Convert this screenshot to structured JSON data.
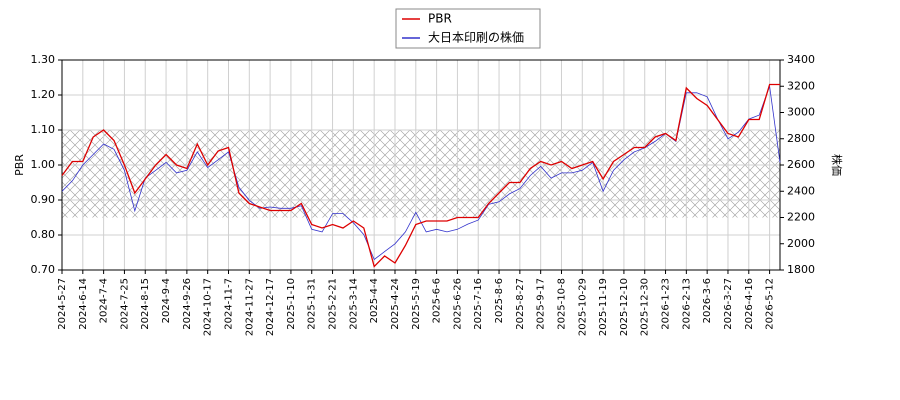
{
  "chart_data": {
    "type": "line",
    "categories": [
      "2024-5-27",
      null,
      "2024-6-14",
      null,
      "2024-7-4",
      null,
      "2024-7-25",
      null,
      "2024-8-15",
      null,
      "2024-9-4",
      null,
      "2024-9-26",
      null,
      "2024-10-17",
      null,
      "2024-11-7",
      null,
      "2024-11-27",
      null,
      "2024-12-17",
      null,
      "2025-1-10",
      null,
      "2025-1-31",
      null,
      "2025-2-21",
      null,
      "2025-3-14",
      null,
      "2025-4-4",
      null,
      "2025-4-24",
      null,
      "2025-5-19",
      null,
      "2025-6-6",
      null,
      "2025-6-26",
      null,
      "2025-7-16",
      null,
      "2025-8-6",
      null,
      "2025-8-27",
      null,
      "2025-9-17",
      null,
      "2025-10-8",
      null,
      "2025-10-29",
      null,
      "2025-11-19",
      null,
      "2025-12-10",
      null,
      "2025-12-30",
      null,
      "2026-1-23",
      null,
      "2026-2-13",
      null,
      "2026-3-6",
      null,
      "2026-3-27",
      null,
      "2026-4-16",
      null,
      "2026-5-12",
      null
    ],
    "series": [
      {
        "name": "PBR",
        "color": "#dd0000",
        "axis": "y",
        "values": [
          0.97,
          1.01,
          1.01,
          1.08,
          1.1,
          1.07,
          1.0,
          0.92,
          0.96,
          1.0,
          1.03,
          1.0,
          0.99,
          1.06,
          1.0,
          1.04,
          1.05,
          0.92,
          0.89,
          0.88,
          0.87,
          0.87,
          0.87,
          0.89,
          0.83,
          0.82,
          0.83,
          0.82,
          0.84,
          0.82,
          0.71,
          0.74,
          0.72,
          0.77,
          0.83,
          0.84,
          0.84,
          0.84,
          0.85,
          0.85,
          0.85,
          0.89,
          0.92,
          0.95,
          0.95,
          0.99,
          1.01,
          1.0,
          1.01,
          0.99,
          1.0,
          1.01,
          0.96,
          1.01,
          1.03,
          1.05,
          1.05,
          1.08,
          1.09,
          1.07,
          1.22,
          1.19,
          1.17,
          1.13,
          1.09,
          1.08,
          1.13,
          1.13,
          1.23,
          1.23
        ]
      },
      {
        "name": "大日本印刷の株価",
        "color": "#3333cc",
        "axis": "y2",
        "values": [
          2400,
          2480,
          2600,
          2680,
          2760,
          2720,
          2560,
          2250,
          2500,
          2560,
          2620,
          2540,
          2560,
          2700,
          2580,
          2640,
          2700,
          2430,
          2330,
          2270,
          2280,
          2270,
          2270,
          2290,
          2110,
          2090,
          2230,
          2230,
          2160,
          2070,
          1880,
          1940,
          2000,
          2090,
          2240,
          2090,
          2110,
          2090,
          2110,
          2150,
          2180,
          2300,
          2320,
          2380,
          2420,
          2520,
          2590,
          2500,
          2540,
          2540,
          2560,
          2620,
          2400,
          2560,
          2640,
          2700,
          2730,
          2780,
          2840,
          2780,
          3150,
          3150,
          3120,
          2950,
          2800,
          2850,
          2950,
          2980,
          3200,
          2620
        ]
      }
    ],
    "ylabel": "PBR",
    "y2label": "株価",
    "ylim": [
      0.7,
      1.3
    ],
    "yticks": [
      {
        "value": 0.7,
        "label": "0.70"
      },
      {
        "value": 0.8,
        "label": "0.80"
      },
      {
        "value": 0.9,
        "label": "0.90"
      },
      {
        "value": 1.0,
        "label": "1.00"
      },
      {
        "value": 1.1,
        "label": "1.10"
      },
      {
        "value": 1.2,
        "label": "1.20"
      },
      {
        "value": 1.3,
        "label": "1.30"
      }
    ],
    "y2lim": [
      1800,
      3400
    ],
    "y2ticks": [
      1800,
      2000,
      2200,
      2400,
      2600,
      2800,
      3000,
      3200,
      3400
    ],
    "shaded_range": [
      0.85,
      1.1
    ],
    "grid": true,
    "legend": "top"
  }
}
